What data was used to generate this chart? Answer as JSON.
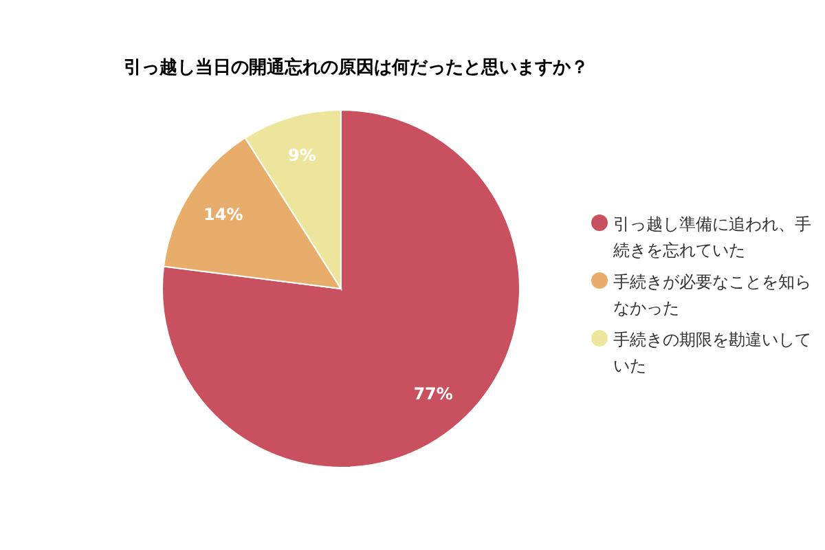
{
  "chart_data": {
    "type": "pie",
    "title": "引っ越し当日の開通忘れの原因は何だったと思いますか？",
    "categories": [
      "引っ越し準備に追われ、手続きを忘れていた",
      "手続きが必要なことを知らなかった",
      "手続きの期限を勘違いしていた"
    ],
    "values": [
      77,
      14,
      9
    ],
    "colors": [
      "#c9505e",
      "#e8ad6a",
      "#ede59c"
    ],
    "value_labels": [
      "77%",
      "14%",
      "9%"
    ],
    "legend": "right"
  }
}
